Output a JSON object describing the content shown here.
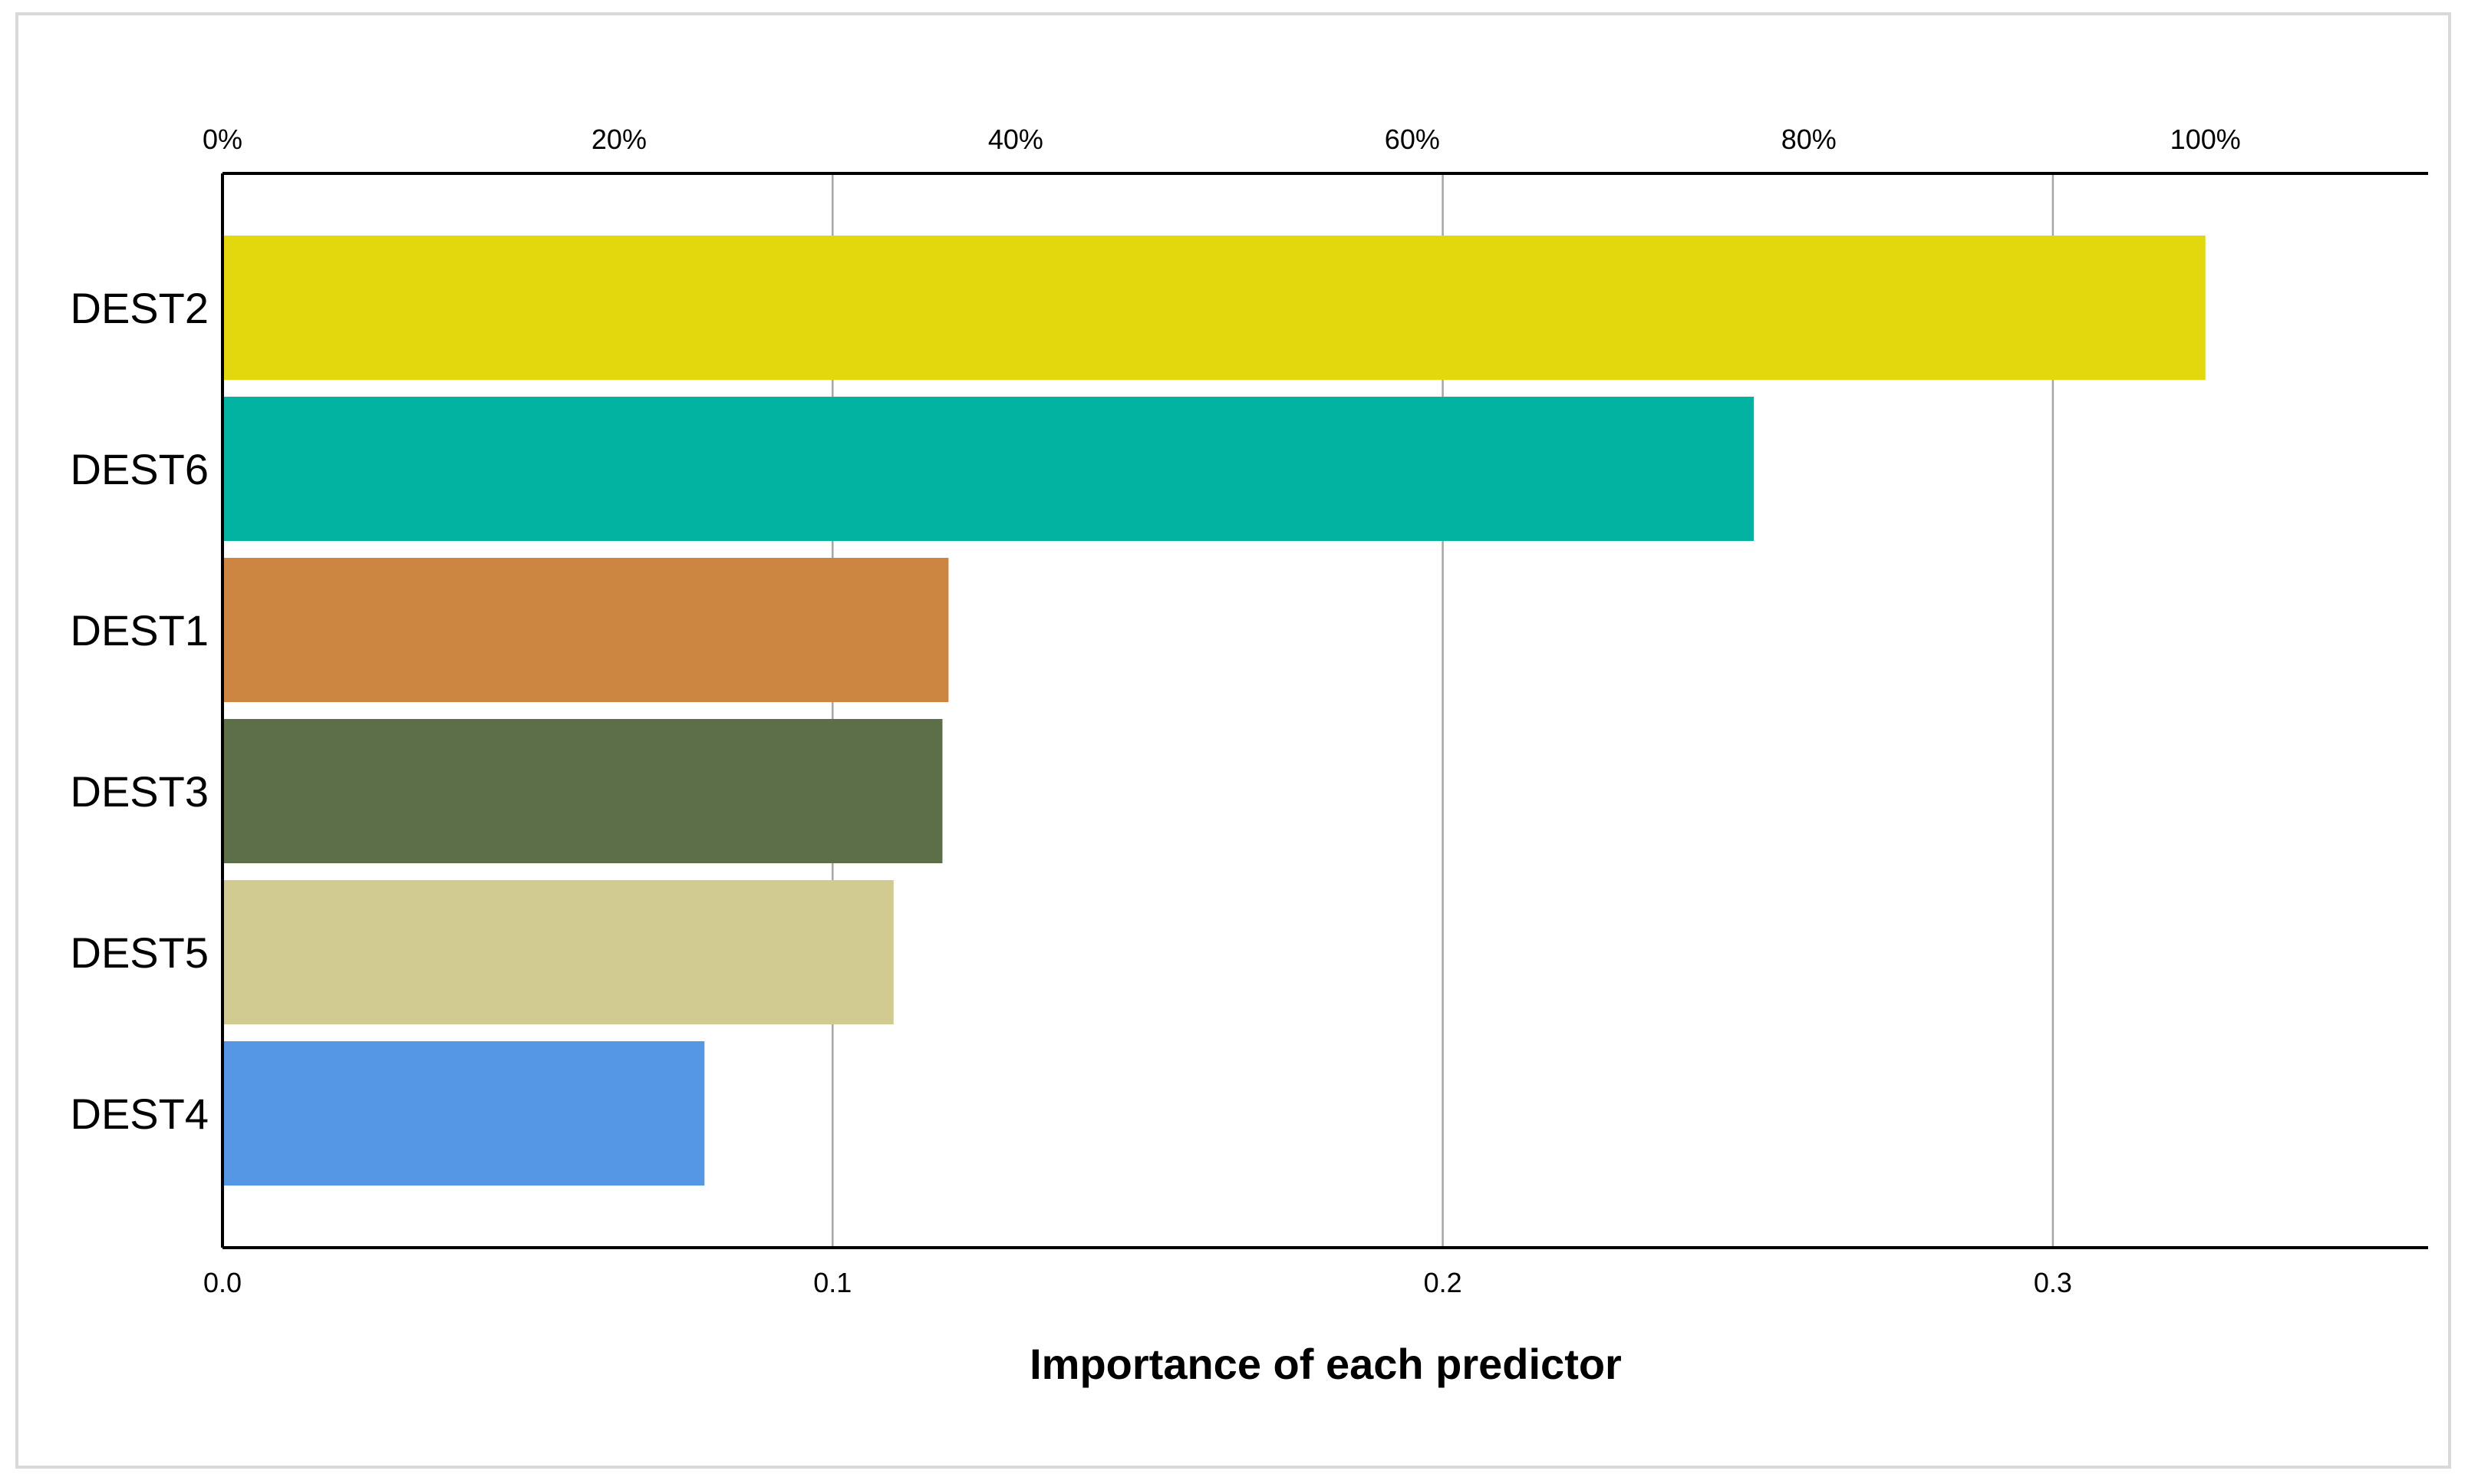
{
  "chart_data": {
    "type": "bar",
    "orientation": "horizontal",
    "title": "",
    "xlabel": "Importance of each predictor",
    "ylabel": "",
    "categories": [
      "DEST2",
      "DEST6",
      "DEST1",
      "DEST3",
      "DEST5",
      "DEST4"
    ],
    "values": [
      0.325,
      0.251,
      0.119,
      0.118,
      0.11,
      0.079
    ],
    "colors": [
      "#e3d80e",
      "#02b3a1",
      "#cc8642",
      "#5c6f48",
      "#d2cb91",
      "#5596e5"
    ],
    "xlim": [
      0,
      0.3615
    ],
    "x_ticks": [
      0.0,
      0.1,
      0.2,
      0.3
    ],
    "x_tick_labels": [
      "0.0",
      "0.1",
      "0.2",
      "0.3"
    ],
    "top_axis": {
      "description": "percent of maximum importance",
      "max_value": 0.325,
      "ticks": [
        0,
        20,
        40,
        60,
        80,
        100
      ],
      "tick_labels": [
        "0%",
        "20%",
        "40%",
        "60%",
        "80%",
        "100%"
      ]
    },
    "grid": true,
    "legend": "none"
  }
}
